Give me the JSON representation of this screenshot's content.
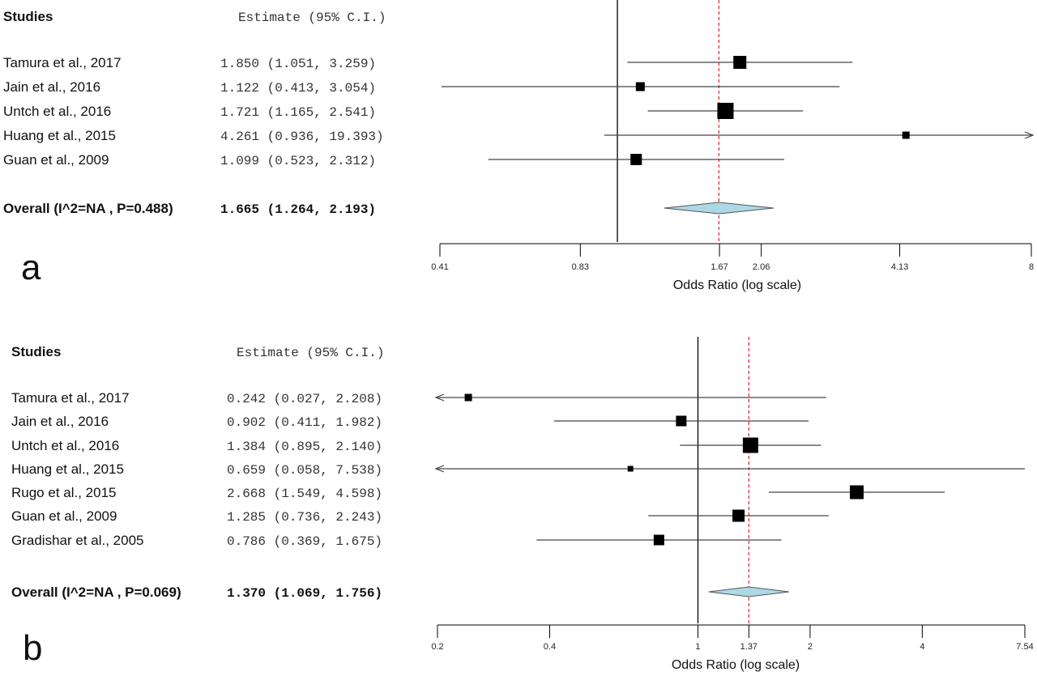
{
  "chart_data": [
    {
      "type": "forest",
      "panel_label": "a",
      "header_studies": "Studies",
      "header_estimate": "Estimate (95% C.I.)",
      "xlabel": "Odds Ratio (log scale)",
      "xscale": "log",
      "xlim": [
        0.41,
        8
      ],
      "ticks": [
        "0.41",
        "0.83",
        "1.67",
        "2.06",
        "4.13",
        "8"
      ],
      "reference_line": 1,
      "pooled_line": 1.665,
      "studies": [
        {
          "name": "Tamura et al., 2017",
          "estimate_text": "1.850 (1.051,  3.259)",
          "or": 1.85,
          "lo": 1.051,
          "hi": 3.259
        },
        {
          "name": "Jain et al., 2016",
          "estimate_text": "1.122 (0.413,  3.054)",
          "or": 1.122,
          "lo": 0.413,
          "hi": 3.054
        },
        {
          "name": "Untch et al., 2016",
          "estimate_text": "1.721 (1.165,  2.541)",
          "or": 1.721,
          "lo": 1.165,
          "hi": 2.541
        },
        {
          "name": "Huang et al., 2015",
          "estimate_text": "4.261 (0.936, 19.393)",
          "or": 4.261,
          "lo": 0.936,
          "hi": 19.393
        },
        {
          "name": "Guan et al., 2009",
          "estimate_text": "1.099 (0.523,  2.312)",
          "or": 1.099,
          "lo": 0.523,
          "hi": 2.312
        }
      ],
      "overall": {
        "label": "Overall (I^2=NA , P=0.488)",
        "estimate_text": "1.665 (1.264,  2.193)",
        "or": 1.665,
        "lo": 1.264,
        "hi": 2.193
      }
    },
    {
      "type": "forest",
      "panel_label": "b",
      "header_studies": "Studies",
      "header_estimate": "Estimate (95% C.I.)",
      "xlabel": "Odds Ratio (log scale)",
      "xscale": "log",
      "xlim": [
        0.2,
        7.54
      ],
      "ticks": [
        "0.2",
        "0.4",
        "1",
        "1.37",
        "2",
        "4",
        "7.54"
      ],
      "reference_line": 1,
      "pooled_line": 1.37,
      "studies": [
        {
          "name": "Tamura et al., 2017",
          "estimate_text": "0.242 (0.027, 2.208)",
          "or": 0.242,
          "lo": 0.027,
          "hi": 2.208
        },
        {
          "name": "Jain et al., 2016",
          "estimate_text": "0.902 (0.411, 1.982)",
          "or": 0.902,
          "lo": 0.411,
          "hi": 1.982
        },
        {
          "name": "Untch et al., 2016",
          "estimate_text": "1.384 (0.895, 2.140)",
          "or": 1.384,
          "lo": 0.895,
          "hi": 2.14
        },
        {
          "name": "Huang et al., 2015",
          "estimate_text": "0.659 (0.058, 7.538)",
          "or": 0.659,
          "lo": 0.058,
          "hi": 7.538
        },
        {
          "name": "Rugo et al., 2015",
          "estimate_text": "2.668 (1.549, 4.598)",
          "or": 2.668,
          "lo": 1.549,
          "hi": 4.598
        },
        {
          "name": "Guan et al., 2009",
          "estimate_text": "1.285 (0.736, 2.243)",
          "or": 1.285,
          "lo": 0.736,
          "hi": 2.243
        },
        {
          "name": "Gradishar et al., 2005",
          "estimate_text": "0.786 (0.369, 1.675)",
          "or": 0.786,
          "lo": 0.369,
          "hi": 1.675
        }
      ],
      "overall": {
        "label": "Overall (I^2=NA , P=0.069)",
        "estimate_text": "1.370 (1.069, 1.756)",
        "or": 1.37,
        "lo": 1.069,
        "hi": 1.756
      }
    }
  ],
  "style": {
    "diamond_fill": "#add8e6",
    "pooled_line_color": "#e8202a",
    "marker_color": "#000000",
    "ci_color": "#444444"
  }
}
